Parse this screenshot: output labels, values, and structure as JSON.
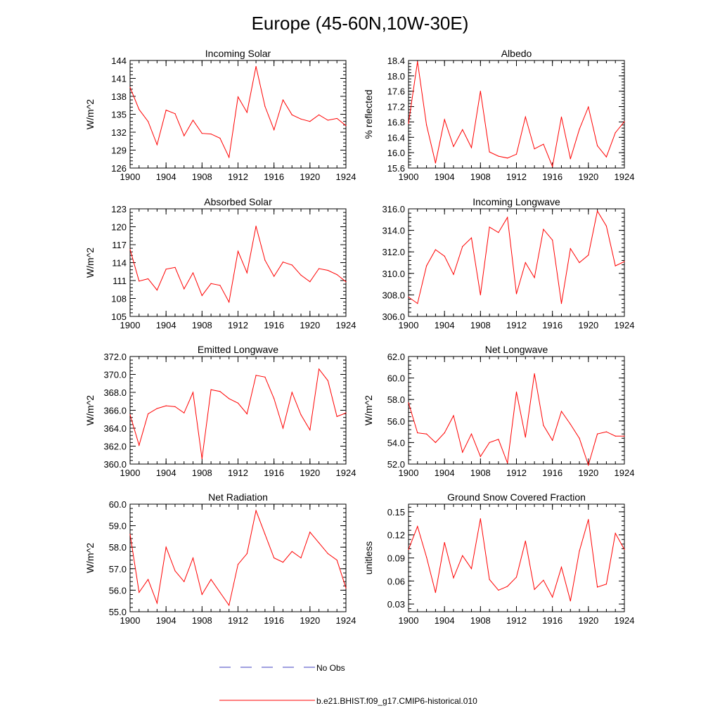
{
  "title": "Europe (45-60N,10W-30E)",
  "colors": {
    "model": "#ff0000",
    "obs": "#4040c0",
    "axis": "#000000"
  },
  "legend": {
    "obs_label": "No Obs",
    "model_label": "b.e21.BHIST.f09_g17.CMIP6-historical.010"
  },
  "chart_data": [
    {
      "type": "line",
      "title": "Incoming Solar",
      "xlabel": "",
      "ylabel": "W/m^2",
      "xlim": [
        1900,
        1924
      ],
      "ylim": [
        126,
        144
      ],
      "xticks": [
        1900,
        1904,
        1908,
        1912,
        1916,
        1920,
        1924
      ],
      "yticks": [
        126,
        129,
        132,
        135,
        138,
        141,
        144
      ],
      "ytick_labels": [
        "126",
        "129",
        "132",
        "135",
        "138",
        "141",
        "144"
      ],
      "x": [
        1900,
        1901,
        1902,
        1903,
        1904,
        1905,
        1906,
        1907,
        1908,
        1909,
        1910,
        1911,
        1912,
        1913,
        1914,
        1915,
        1916,
        1917,
        1918,
        1919,
        1920,
        1921,
        1922,
        1923,
        1924
      ],
      "series": [
        {
          "values": [
            139.5,
            135.8,
            133.8,
            129.9,
            135.7,
            135.1,
            131.4,
            134.0,
            131.8,
            131.7,
            131.0,
            127.8,
            137.9,
            135.3,
            143.0,
            136.3,
            132.4,
            137.4,
            134.9,
            134.2,
            133.8,
            134.9,
            134.0,
            134.3,
            133.1
          ]
        }
      ]
    },
    {
      "type": "line",
      "title": "Albedo",
      "xlabel": "",
      "ylabel": "% reflected",
      "xlim": [
        1900,
        1924
      ],
      "ylim": [
        15.6,
        18.4
      ],
      "xticks": [
        1900,
        1904,
        1908,
        1912,
        1916,
        1920,
        1924
      ],
      "yticks": [
        15.6,
        16.0,
        16.4,
        16.8,
        17.2,
        17.6,
        18.0,
        18.4
      ],
      "ytick_labels": [
        "15.6",
        "16.0",
        "16.4",
        "16.8",
        "17.2",
        "17.6",
        "18.0",
        "18.4"
      ],
      "x": [
        1900,
        1901,
        1902,
        1903,
        1904,
        1905,
        1906,
        1907,
        1908,
        1909,
        1910,
        1911,
        1912,
        1913,
        1914,
        1915,
        1916,
        1917,
        1918,
        1919,
        1920,
        1921,
        1922,
        1923,
        1924
      ],
      "series": [
        {
          "values": [
            16.76,
            18.37,
            16.72,
            15.73,
            16.86,
            16.16,
            16.6,
            16.13,
            17.6,
            16.02,
            15.91,
            15.86,
            15.96,
            16.93,
            16.1,
            16.22,
            15.64,
            16.93,
            15.84,
            16.61,
            17.19,
            16.18,
            15.89,
            16.52,
            16.81
          ]
        }
      ]
    },
    {
      "type": "line",
      "title": "Absorbed Solar",
      "xlabel": "",
      "ylabel": "W/m^2",
      "xlim": [
        1900,
        1924
      ],
      "ylim": [
        105,
        123
      ],
      "xticks": [
        1900,
        1904,
        1908,
        1912,
        1916,
        1920,
        1924
      ],
      "yticks": [
        105,
        108,
        111,
        114,
        117,
        120,
        123
      ],
      "ytick_labels": [
        "105",
        "108",
        "111",
        "114",
        "117",
        "120",
        "123"
      ],
      "x": [
        1900,
        1901,
        1902,
        1903,
        1904,
        1905,
        1906,
        1907,
        1908,
        1909,
        1910,
        1911,
        1912,
        1913,
        1914,
        1915,
        1916,
        1917,
        1918,
        1919,
        1920,
        1921,
        1922,
        1923,
        1924
      ],
      "series": [
        {
          "values": [
            116.2,
            110.9,
            111.3,
            109.4,
            112.9,
            113.2,
            109.6,
            112.3,
            108.5,
            110.5,
            110.2,
            107.4,
            115.9,
            112.3,
            120.1,
            114.4,
            111.7,
            114.1,
            113.6,
            111.9,
            110.8,
            113.0,
            112.7,
            112.0,
            110.8
          ]
        }
      ]
    },
    {
      "type": "line",
      "title": "Incoming Longwave",
      "xlabel": "",
      "ylabel": "",
      "xlim": [
        1900,
        1924
      ],
      "ylim": [
        306.0,
        316.0
      ],
      "xticks": [
        1900,
        1904,
        1908,
        1912,
        1916,
        1920,
        1924
      ],
      "yticks": [
        306,
        308,
        310,
        312,
        314,
        316
      ],
      "ytick_labels": [
        "306.0",
        "308.0",
        "310.0",
        "312.0",
        "314.0",
        "316.0"
      ],
      "x": [
        1900,
        1901,
        1902,
        1903,
        1904,
        1905,
        1906,
        1907,
        1908,
        1909,
        1910,
        1911,
        1912,
        1913,
        1914,
        1915,
        1916,
        1917,
        1918,
        1919,
        1920,
        1921,
        1922,
        1923,
        1924
      ],
      "series": [
        {
          "values": [
            307.8,
            307.2,
            310.7,
            312.2,
            311.6,
            309.9,
            312.5,
            313.3,
            308.0,
            314.3,
            313.8,
            315.2,
            308.1,
            311.0,
            309.6,
            314.1,
            313.1,
            307.2,
            312.3,
            311.0,
            311.7,
            315.8,
            314.4,
            310.7,
            311.1
          ]
        }
      ]
    },
    {
      "type": "line",
      "title": "Emitted Longwave",
      "xlabel": "",
      "ylabel": "W/m^2",
      "xlim": [
        1900,
        1924
      ],
      "ylim": [
        360.0,
        372.0
      ],
      "xticks": [
        1900,
        1904,
        1908,
        1912,
        1916,
        1920,
        1924
      ],
      "yticks": [
        360,
        362,
        364,
        366,
        368,
        370,
        372
      ],
      "ytick_labels": [
        "360.0",
        "362.0",
        "364.0",
        "366.0",
        "368.0",
        "370.0",
        "372.0"
      ],
      "x": [
        1900,
        1901,
        1902,
        1903,
        1904,
        1905,
        1906,
        1907,
        1908,
        1909,
        1910,
        1911,
        1912,
        1913,
        1914,
        1915,
        1916,
        1917,
        1918,
        1919,
        1920,
        1921,
        1922,
        1923,
        1924
      ],
      "series": [
        {
          "values": [
            365.5,
            362.1,
            365.6,
            366.2,
            366.5,
            366.4,
            365.7,
            368.0,
            360.6,
            368.3,
            368.1,
            367.3,
            366.8,
            365.6,
            369.9,
            369.7,
            367.3,
            364.0,
            368.0,
            365.5,
            363.8,
            370.6,
            369.3,
            365.3,
            365.7
          ]
        }
      ]
    },
    {
      "type": "line",
      "title": "Net Longwave",
      "xlabel": "",
      "ylabel": "W/m^2",
      "xlim": [
        1900,
        1924
      ],
      "ylim": [
        52.0,
        62.0
      ],
      "xticks": [
        1900,
        1904,
        1908,
        1912,
        1916,
        1920,
        1924
      ],
      "yticks": [
        52,
        54,
        56,
        58,
        60,
        62
      ],
      "ytick_labels": [
        "52.0",
        "54.0",
        "56.0",
        "58.0",
        "60.0",
        "62.0"
      ],
      "x": [
        1900,
        1901,
        1902,
        1903,
        1904,
        1905,
        1906,
        1907,
        1908,
        1909,
        1910,
        1911,
        1912,
        1913,
        1914,
        1915,
        1916,
        1917,
        1918,
        1919,
        1920,
        1921,
        1922,
        1923,
        1924
      ],
      "series": [
        {
          "values": [
            57.7,
            54.9,
            54.8,
            54.0,
            54.9,
            56.5,
            53.1,
            54.8,
            52.7,
            54.0,
            54.3,
            52.1,
            58.7,
            54.5,
            60.4,
            55.6,
            54.2,
            56.9,
            55.7,
            54.4,
            51.9,
            54.8,
            55.0,
            54.6,
            54.6
          ]
        }
      ]
    },
    {
      "type": "line",
      "title": "Net Radiation",
      "xlabel": "",
      "ylabel": "W/m^2",
      "xlim": [
        1900,
        1924
      ],
      "ylim": [
        55.0,
        60.0
      ],
      "xticks": [
        1900,
        1904,
        1908,
        1912,
        1916,
        1920,
        1924
      ],
      "yticks": [
        55,
        56,
        57,
        58,
        59,
        60
      ],
      "ytick_labels": [
        "55.0",
        "56.0",
        "57.0",
        "58.0",
        "59.0",
        "60.0"
      ],
      "x": [
        1900,
        1901,
        1902,
        1903,
        1904,
        1905,
        1906,
        1907,
        1908,
        1909,
        1910,
        1911,
        1912,
        1913,
        1914,
        1915,
        1916,
        1917,
        1918,
        1919,
        1920,
        1921,
        1922,
        1923,
        1924
      ],
      "series": [
        {
          "values": [
            58.6,
            55.9,
            56.5,
            55.4,
            58.0,
            56.9,
            56.4,
            57.5,
            55.8,
            56.5,
            55.9,
            55.3,
            57.2,
            57.7,
            59.7,
            58.6,
            57.5,
            57.3,
            57.8,
            57.5,
            58.7,
            58.2,
            57.7,
            57.4,
            56.1
          ]
        }
      ]
    },
    {
      "type": "line",
      "title": "Ground Snow Covered Fraction",
      "xlabel": "",
      "ylabel": "unitless",
      "xlim": [
        1900,
        1924
      ],
      "ylim": [
        0.02,
        0.16
      ],
      "xticks": [
        1900,
        1904,
        1908,
        1912,
        1916,
        1920,
        1924
      ],
      "yticks": [
        0.03,
        0.06,
        0.09,
        0.12,
        0.15
      ],
      "ytick_labels": [
        "0.03",
        "0.06",
        "0.09",
        "0.12",
        "0.15"
      ],
      "x": [
        1900,
        1901,
        1902,
        1903,
        1904,
        1905,
        1906,
        1907,
        1908,
        1909,
        1910,
        1911,
        1912,
        1913,
        1914,
        1915,
        1916,
        1917,
        1918,
        1919,
        1920,
        1921,
        1922,
        1923,
        1924
      ],
      "series": [
        {
          "values": [
            0.101,
            0.131,
            0.091,
            0.045,
            0.11,
            0.064,
            0.093,
            0.076,
            0.141,
            0.062,
            0.048,
            0.053,
            0.065,
            0.112,
            0.049,
            0.061,
            0.039,
            0.078,
            0.034,
            0.099,
            0.14,
            0.052,
            0.056,
            0.122,
            0.101
          ]
        }
      ]
    }
  ]
}
